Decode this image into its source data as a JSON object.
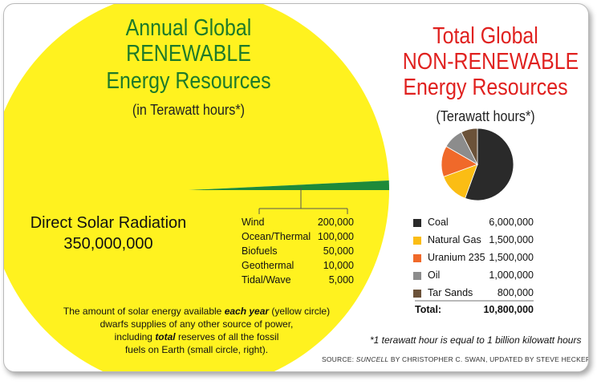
{
  "renewable": {
    "title_lines": [
      "Annual Global",
      "RENEWABLE",
      "Energy Resources"
    ],
    "subtitle": "(in Terawatt hours*)",
    "solar_label": "Direct Solar Radiation",
    "solar_value": "350,000,000",
    "note_lines": [
      [
        "The amount of solar energy available ",
        "each year",
        " (yellow circle)"
      ],
      [
        "dwarfs supplies of any other source of power,",
        "",
        ""
      ],
      [
        "including ",
        "total",
        " reserves of all the fossil"
      ],
      [
        "fuels on Earth (small circle, right).",
        "",
        ""
      ]
    ]
  },
  "nonrenewable": {
    "title_lines": [
      "Total Global",
      "NON-RENEWABLE",
      "Energy Resources"
    ],
    "subtitle": "(Terawatt hours*)",
    "total_label": "Total:",
    "total_value": "10,800,000"
  },
  "footnote": "*1 terawatt hour is equal to 1 billion kilowatt hours",
  "source": [
    "SOURCE: ",
    "SUNCELL",
    " BY CHRISTOPHER C. SWAN, UPDATED BY STEVE HECKEROTH"
  ],
  "colors": {
    "solar": "#fff21f",
    "renewable_wedge": "#1e8a3a",
    "green_text": "#1d7a2a",
    "red_text": "#e0211f"
  },
  "chart_data": [
    {
      "type": "pie",
      "title": "Annual Global RENEWABLE Energy Resources",
      "unit": "(in Terawatt hours*)",
      "slices": [
        {
          "label": "Direct Solar Radiation",
          "value": 350000000,
          "display": "350,000,000"
        },
        {
          "label": "Wind",
          "value": 200000,
          "display": "200,000"
        },
        {
          "label": "Ocean/Thermal",
          "value": 100000,
          "display": "100,000"
        },
        {
          "label": "Biofuels",
          "value": 50000,
          "display": "50,000"
        },
        {
          "label": "Geothermal",
          "value": 10000,
          "display": "10,000"
        },
        {
          "label": "Tidal/Wave",
          "value": 5000,
          "display": "5,000"
        }
      ]
    },
    {
      "type": "pie",
      "title": "Total Global NON-RENEWABLE Energy Resources",
      "unit": "(Terawatt hours*)",
      "slices": [
        {
          "label": "Coal",
          "value": 6000000,
          "display": "6,000,000",
          "color": "#2a2a2a"
        },
        {
          "label": "Natural Gas",
          "value": 1500000,
          "display": "1,500,000",
          "color": "#fbbd14"
        },
        {
          "label": "Uranium 235",
          "value": 1500000,
          "display": "1,500,000",
          "color": "#f0692a"
        },
        {
          "label": "Oil",
          "value": 1000000,
          "display": "1,000,000",
          "color": "#8c8c8c"
        },
        {
          "label": "Tar Sands",
          "value": 800000,
          "display": "800,000",
          "color": "#6b5239"
        }
      ],
      "total": {
        "label": "Total:",
        "value": 10800000,
        "display": "10,800,000"
      }
    }
  ]
}
